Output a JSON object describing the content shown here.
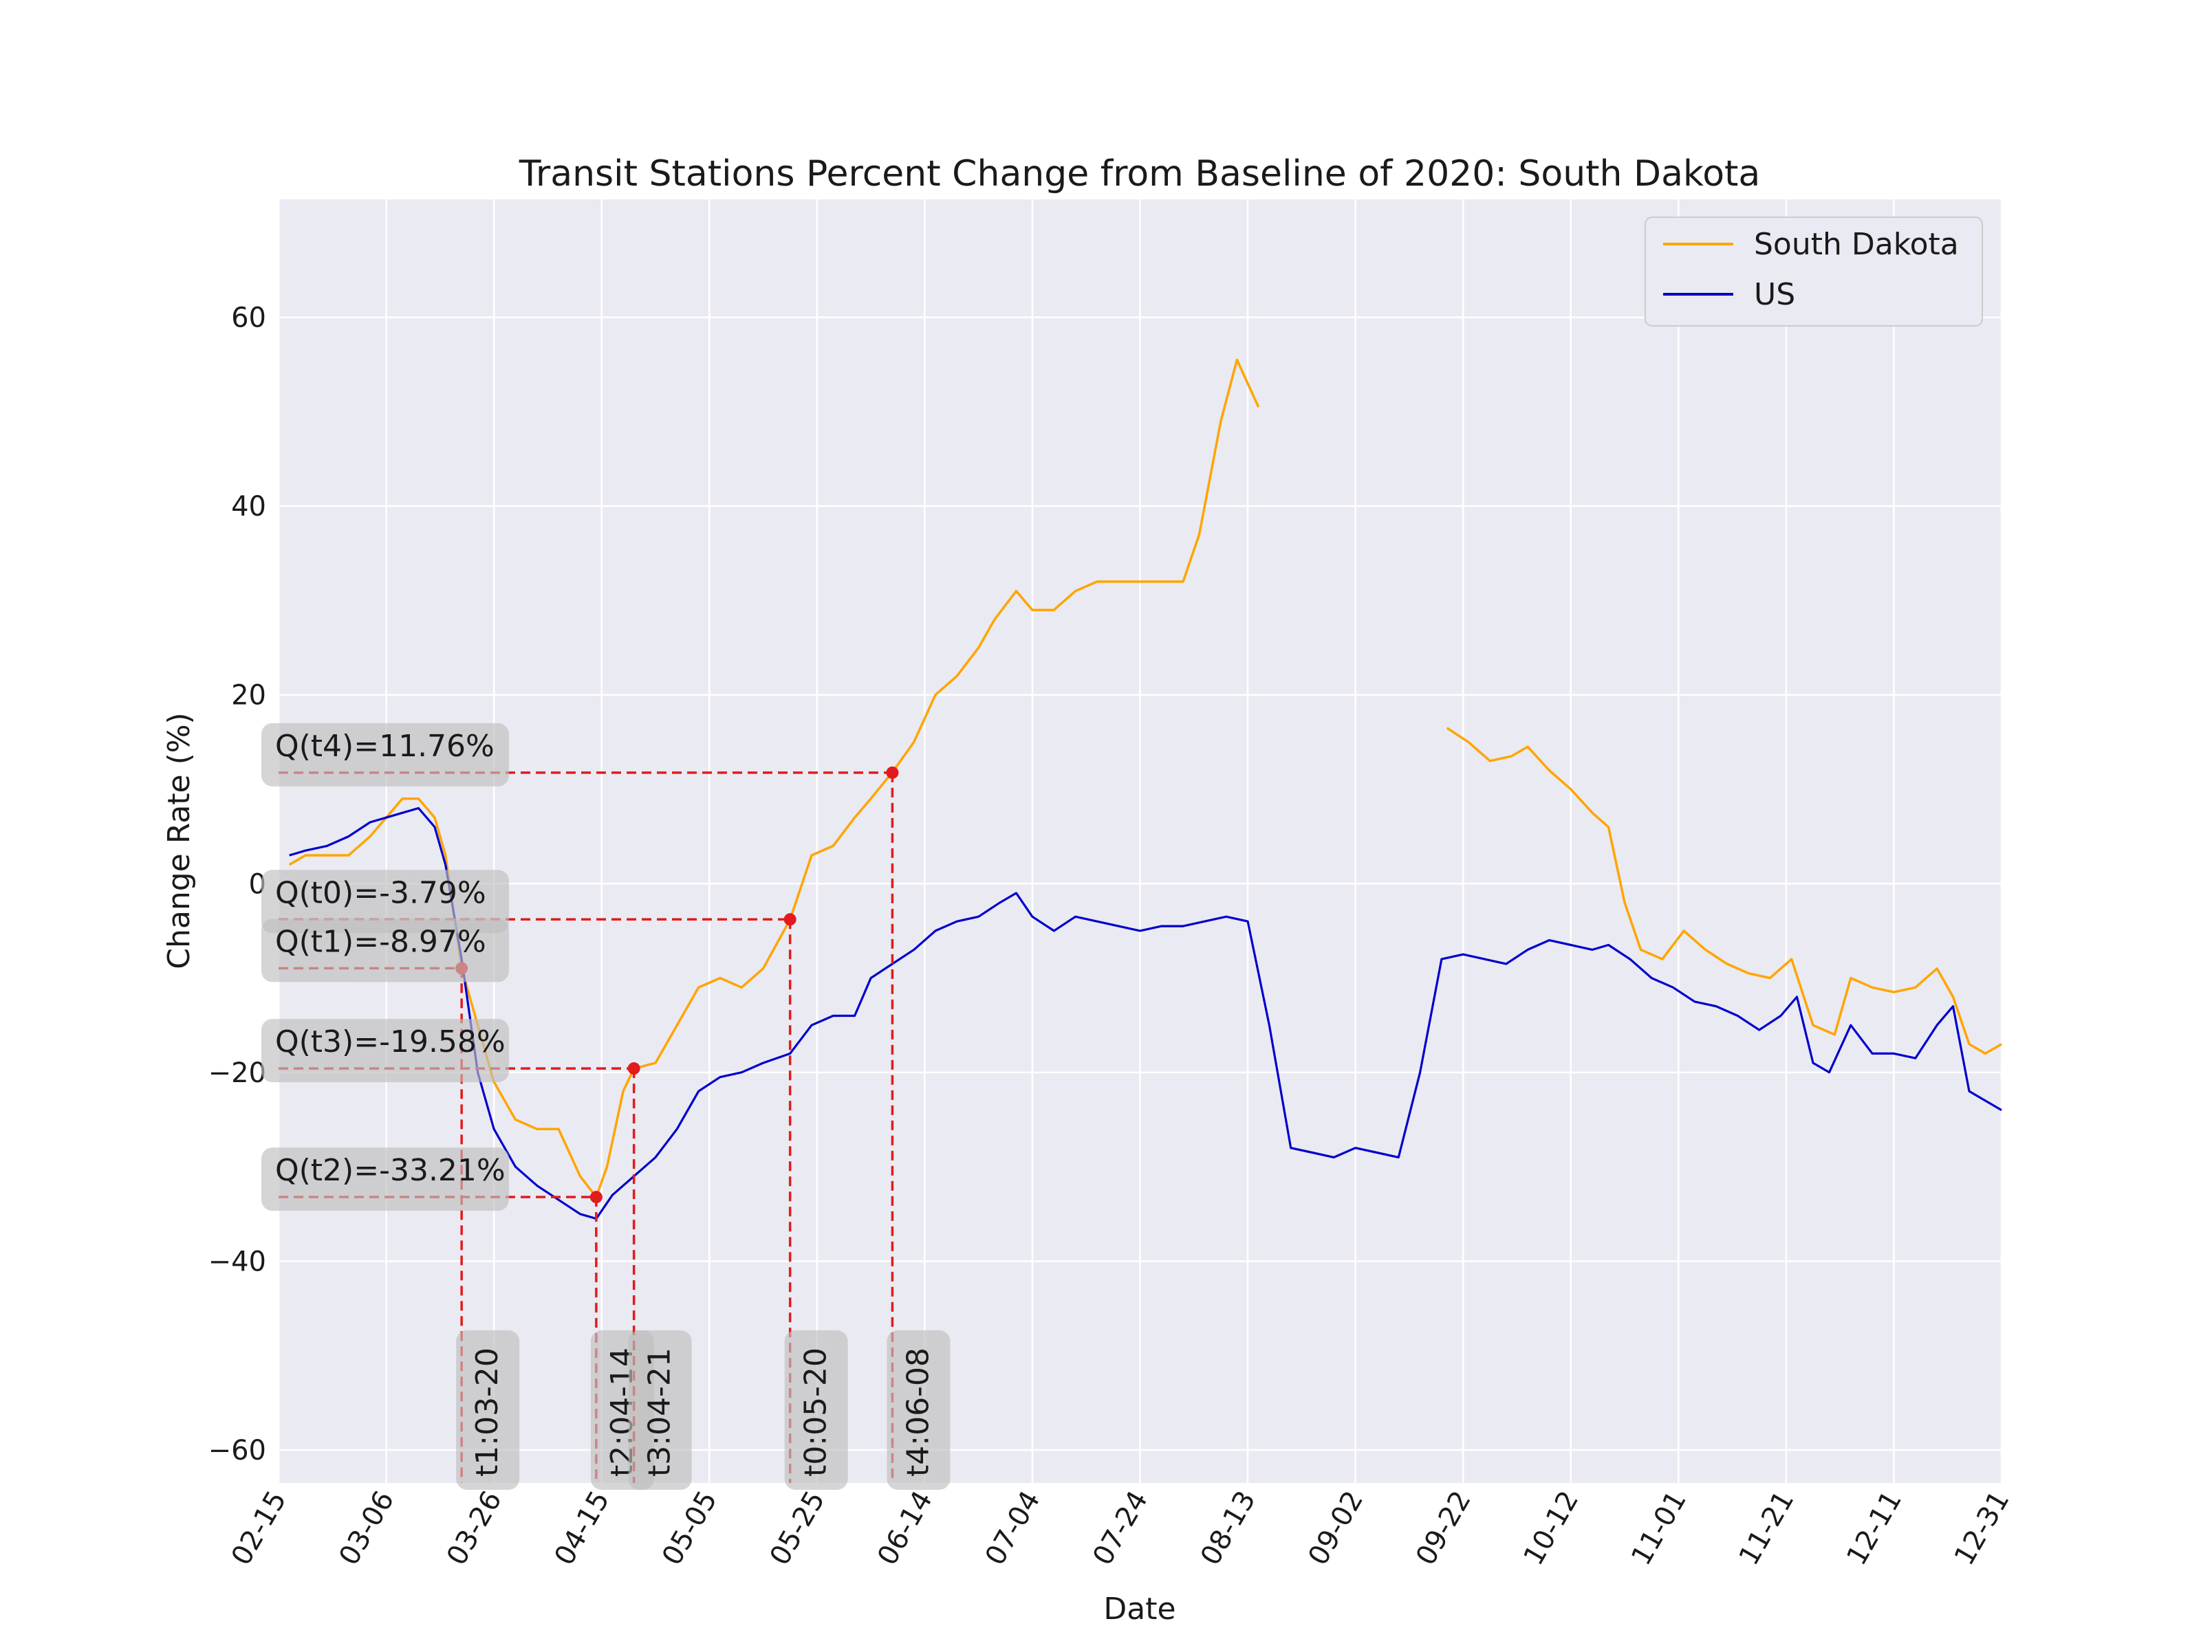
{
  "chart_data": {
    "type": "line",
    "title": "Transit Stations Percent Change from Baseline of 2020: South Dakota",
    "xlabel": "Date",
    "ylabel": "Change Rate (%)",
    "x_ticks": [
      "02-15",
      "03-06",
      "03-26",
      "04-15",
      "05-05",
      "05-25",
      "06-14",
      "07-04",
      "07-24",
      "08-13",
      "09-02",
      "09-22",
      "10-12",
      "11-01",
      "11-21",
      "12-11",
      "12-31"
    ],
    "y_ticks": [
      60,
      40,
      20,
      0,
      -20,
      -40,
      -60
    ],
    "ylim": [
      -63.5,
      72.5
    ],
    "xlim": [
      "02-15",
      "12-31"
    ],
    "grid": true,
    "legend_position": "top-right",
    "colors": {
      "south_dakota": "#ffa500",
      "us": "#0000cd",
      "markers": "#e31a1c",
      "background": "#eaeaf2"
    },
    "series": [
      {
        "name": "South Dakota",
        "color": "#ffa500",
        "segments": [
          [
            [
              "02-17",
              2
            ],
            [
              "02-20",
              3
            ],
            [
              "02-24",
              3
            ],
            [
              "02-28",
              3
            ],
            [
              "03-03",
              5
            ],
            [
              "03-06",
              7
            ],
            [
              "03-09",
              9
            ],
            [
              "03-12",
              9
            ],
            [
              "03-15",
              7
            ],
            [
              "03-17",
              3
            ],
            [
              "03-20",
              -9
            ],
            [
              "03-23",
              -15
            ],
            [
              "03-26",
              -21
            ],
            [
              "03-30",
              -25
            ],
            [
              "04-03",
              -26
            ],
            [
              "04-07",
              -26
            ],
            [
              "04-11",
              -31
            ],
            [
              "04-14",
              -33.2
            ],
            [
              "04-16",
              -30
            ],
            [
              "04-19",
              -22
            ],
            [
              "04-21",
              -19.6
            ],
            [
              "04-25",
              -19
            ],
            [
              "04-29",
              -15
            ],
            [
              "05-03",
              -11
            ],
            [
              "05-07",
              -10
            ],
            [
              "05-11",
              -11
            ],
            [
              "05-15",
              -9
            ],
            [
              "05-20",
              -3.8
            ],
            [
              "05-24",
              3
            ],
            [
              "05-28",
              4
            ],
            [
              "06-01",
              7
            ],
            [
              "06-04",
              9
            ],
            [
              "06-08",
              11.8
            ],
            [
              "06-12",
              15
            ],
            [
              "06-16",
              20
            ],
            [
              "06-20",
              22
            ],
            [
              "06-24",
              25
            ],
            [
              "06-27",
              28
            ],
            [
              "07-01",
              31
            ],
            [
              "07-04",
              29
            ],
            [
              "07-08",
              29
            ],
            [
              "07-12",
              31
            ],
            [
              "07-16",
              32
            ],
            [
              "07-20",
              32
            ],
            [
              "07-24",
              32
            ],
            [
              "07-28",
              32
            ],
            [
              "08-01",
              32
            ],
            [
              "08-04",
              37
            ],
            [
              "08-08",
              49
            ],
            [
              "08-11",
              55.5
            ],
            [
              "08-15",
              50.5
            ]
          ],
          [
            [
              "09-19",
              16.5
            ],
            [
              "09-23",
              15
            ],
            [
              "09-27",
              13
            ],
            [
              "10-01",
              13.5
            ],
            [
              "10-04",
              14.5
            ],
            [
              "10-08",
              12
            ],
            [
              "10-12",
              10
            ],
            [
              "10-16",
              7.5
            ],
            [
              "10-19",
              6
            ],
            [
              "10-22",
              -2
            ],
            [
              "10-25",
              -7
            ],
            [
              "10-29",
              -8
            ],
            [
              "11-02",
              -5
            ],
            [
              "11-06",
              -7
            ],
            [
              "11-10",
              -8.5
            ],
            [
              "11-14",
              -9.5
            ],
            [
              "11-18",
              -10
            ],
            [
              "11-22",
              -8
            ],
            [
              "11-26",
              -15
            ],
            [
              "11-30",
              -16
            ],
            [
              "12-03",
              -10
            ],
            [
              "12-07",
              -11
            ],
            [
              "12-11",
              -11.5
            ],
            [
              "12-15",
              -11
            ],
            [
              "12-19",
              -9
            ],
            [
              "12-22",
              -12
            ],
            [
              "12-25",
              -17
            ],
            [
              "12-28",
              -18
            ],
            [
              "12-31",
              -17
            ]
          ]
        ]
      },
      {
        "name": "US",
        "color": "#0000cd",
        "segments": [
          [
            [
              "02-17",
              3
            ],
            [
              "02-20",
              3.5
            ],
            [
              "02-24",
              4
            ],
            [
              "02-28",
              5
            ],
            [
              "03-03",
              6.5
            ],
            [
              "03-06",
              7
            ],
            [
              "03-09",
              7.5
            ],
            [
              "03-12",
              8
            ],
            [
              "03-15",
              6
            ],
            [
              "03-17",
              2
            ],
            [
              "03-20",
              -8
            ],
            [
              "03-23",
              -20
            ],
            [
              "03-26",
              -26
            ],
            [
              "03-30",
              -30
            ],
            [
              "04-03",
              -32
            ],
            [
              "04-07",
              -33.5
            ],
            [
              "04-11",
              -35
            ],
            [
              "04-14",
              -35.5
            ],
            [
              "04-17",
              -33
            ],
            [
              "04-21",
              -31
            ],
            [
              "04-25",
              -29
            ],
            [
              "04-29",
              -26
            ],
            [
              "05-03",
              -22
            ],
            [
              "05-07",
              -20.5
            ],
            [
              "05-11",
              -20
            ],
            [
              "05-15",
              -19
            ],
            [
              "05-20",
              -18
            ],
            [
              "05-24",
              -15
            ],
            [
              "05-28",
              -14
            ],
            [
              "06-01",
              -14
            ],
            [
              "06-04",
              -10
            ],
            [
              "06-08",
              -8.5
            ],
            [
              "06-12",
              -7
            ],
            [
              "06-16",
              -5
            ],
            [
              "06-20",
              -4
            ],
            [
              "06-24",
              -3.5
            ],
            [
              "06-28",
              -2
            ],
            [
              "07-01",
              -1
            ],
            [
              "07-04",
              -3.5
            ],
            [
              "07-08",
              -5
            ],
            [
              "07-12",
              -3.5
            ],
            [
              "07-16",
              -4
            ],
            [
              "07-20",
              -4.5
            ],
            [
              "07-24",
              -5
            ],
            [
              "07-28",
              -4.5
            ],
            [
              "08-01",
              -4.5
            ],
            [
              "08-05",
              -4
            ],
            [
              "08-09",
              -3.5
            ],
            [
              "08-13",
              -4
            ],
            [
              "08-17",
              -15
            ],
            [
              "08-21",
              -28
            ],
            [
              "08-25",
              -28.5
            ],
            [
              "08-29",
              -29
            ],
            [
              "09-02",
              -28
            ],
            [
              "09-06",
              -28.5
            ],
            [
              "09-10",
              -29
            ],
            [
              "09-14",
              -20
            ],
            [
              "09-18",
              -8
            ],
            [
              "09-22",
              -7.5
            ],
            [
              "09-26",
              -8
            ],
            [
              "09-30",
              -8.5
            ],
            [
              "10-04",
              -7
            ],
            [
              "10-08",
              -6
            ],
            [
              "10-12",
              -6.5
            ],
            [
              "10-16",
              -7
            ],
            [
              "10-19",
              -6.5
            ],
            [
              "10-23",
              -8
            ],
            [
              "10-27",
              -10
            ],
            [
              "10-31",
              -11
            ],
            [
              "11-04",
              -12.5
            ],
            [
              "11-08",
              -13
            ],
            [
              "11-12",
              -14
            ],
            [
              "11-16",
              -15.5
            ],
            [
              "11-20",
              -14
            ],
            [
              "11-23",
              -12
            ],
            [
              "11-26",
              -19
            ],
            [
              "11-29",
              -20
            ],
            [
              "12-03",
              -15
            ],
            [
              "12-07",
              -18
            ],
            [
              "12-11",
              -18
            ],
            [
              "12-15",
              -18.5
            ],
            [
              "12-19",
              -15
            ],
            [
              "12-22",
              -13
            ],
            [
              "12-25",
              -22
            ],
            [
              "12-28",
              -23
            ],
            [
              "12-31",
              -24
            ]
          ]
        ]
      }
    ],
    "annotations": [
      {
        "time_label": "t0:05-20",
        "value_label": "Q(t0)=-3.79%",
        "date": "05-20",
        "value": -3.79
      },
      {
        "time_label": "t1:03-20",
        "value_label": "Q(t1)=-8.97%",
        "date": "03-20",
        "value": -8.97
      },
      {
        "time_label": "t2:04-14",
        "value_label": "Q(t2)=-33.21%",
        "date": "04-14",
        "value": -33.21
      },
      {
        "time_label": "t3:04-21",
        "value_label": "Q(t3)=-19.58%",
        "date": "04-21",
        "value": -19.58
      },
      {
        "time_label": "t4:06-08",
        "value_label": "Q(t4)=11.76%",
        "date": "06-08",
        "value": 11.76
      }
    ]
  }
}
